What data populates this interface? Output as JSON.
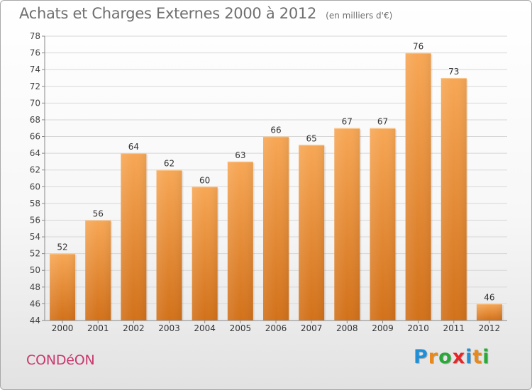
{
  "header": {
    "title": "Achats et Charges Externes 2000 à 2012",
    "unit": "(en milliers d'€)"
  },
  "footer": {
    "commune": "CONDéON",
    "logo_letters": [
      "P",
      "r",
      "o",
      "x",
      "i",
      "t",
      "i"
    ],
    "logo_colors": [
      "#1e90d8",
      "#e8891c",
      "#2aa83a",
      "#e52629",
      "#1e90d8",
      "#e8891c",
      "#2aa83a"
    ]
  },
  "colors": {
    "bar_light": "#f7a755",
    "bar_dark": "#d2711a",
    "grid": "#d7d7d7",
    "axis": "#888888"
  },
  "chart_data": {
    "type": "bar",
    "title": "Achats et Charges Externes 2000 à 2012",
    "subtitle": "(en milliers d'€)",
    "categories": [
      "2000",
      "2001",
      "2002",
      "2003",
      "2004",
      "2005",
      "2006",
      "2007",
      "2008",
      "2009",
      "2010",
      "2011",
      "2012"
    ],
    "values": [
      52,
      56,
      64,
      62,
      60,
      63,
      66,
      65,
      67,
      67,
      76,
      73,
      46
    ],
    "xlabel": "",
    "ylabel": "",
    "ylim": [
      44,
      78
    ],
    "yticks": [
      44,
      46,
      48,
      50,
      52,
      54,
      56,
      58,
      60,
      62,
      64,
      66,
      68,
      70,
      72,
      74,
      76,
      78
    ],
    "grid": true,
    "data_labels": true
  }
}
